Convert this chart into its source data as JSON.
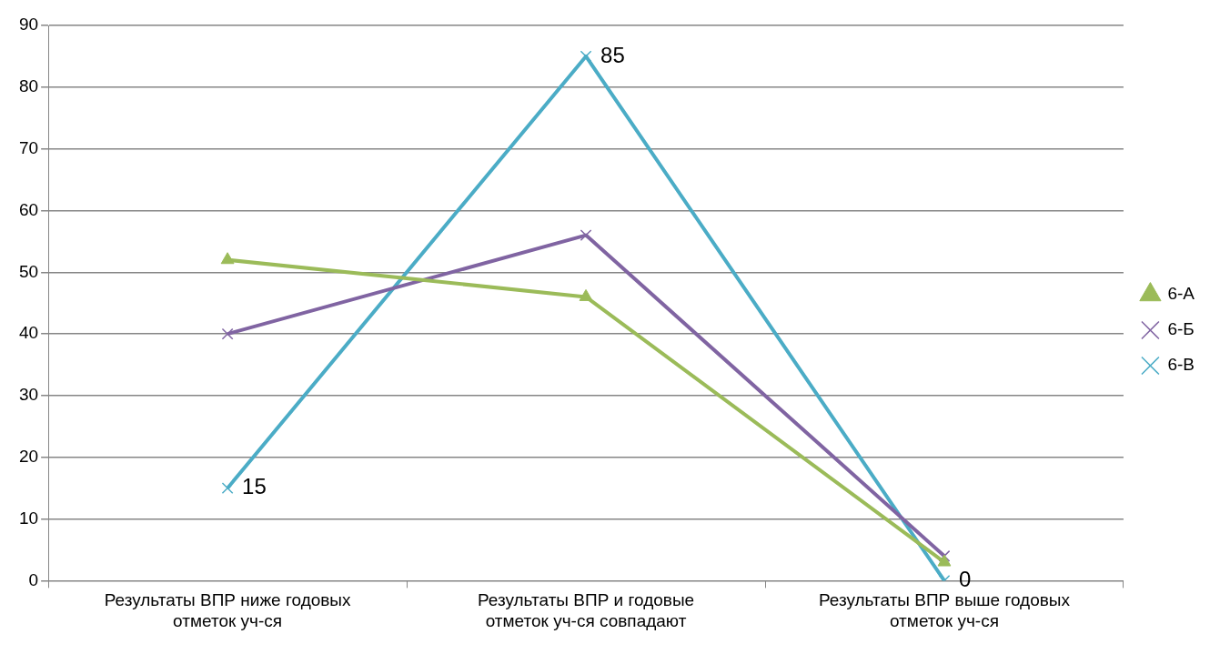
{
  "chart_data": {
    "type": "line",
    "categories": [
      "Результаты ВПР ниже годовых отметок уч-ся",
      "Результаты ВПР и годовые отметок уч-ся совпадают",
      "Результаты ВПР выше годовых отметок уч-ся"
    ],
    "series": [
      {
        "name": "6-А",
        "color": "#9bbb59",
        "marker": "triangle",
        "values": [
          52,
          46,
          3
        ]
      },
      {
        "name": "6-Б",
        "color": "#8064a2",
        "marker": "cross",
        "values": [
          40,
          56,
          4
        ]
      },
      {
        "name": "6-В",
        "color": "#4bacc6",
        "marker": "cross",
        "values": [
          15,
          85,
          0
        ],
        "value_labels": [
          "15",
          "85",
          "0"
        ]
      }
    ],
    "ylim": [
      0,
      90
    ],
    "yticks": [
      0,
      10,
      20,
      30,
      40,
      50,
      60,
      70,
      80,
      90
    ],
    "grid": "y",
    "legend": "right",
    "line_style": "solid"
  }
}
